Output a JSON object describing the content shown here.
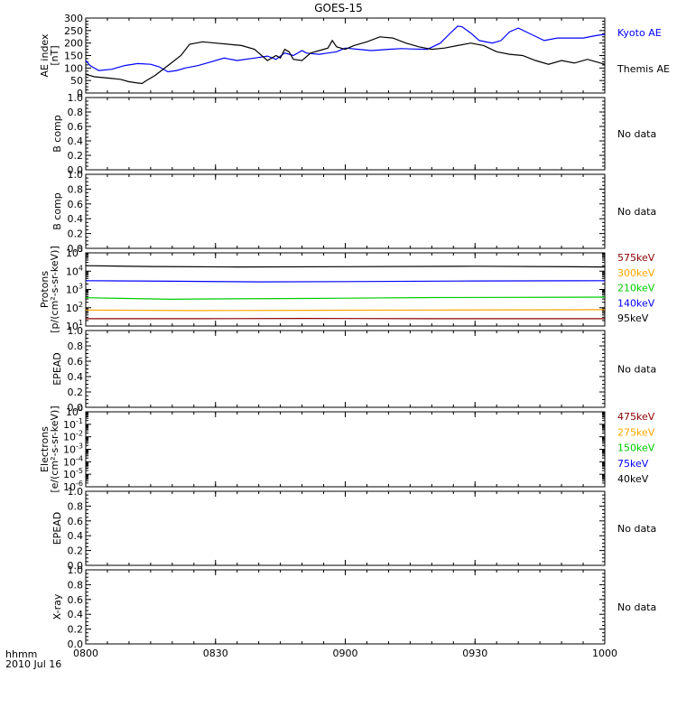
{
  "title": "GOES-15",
  "footer": {
    "time_label": "hhmm",
    "date_label": "2010 Jul 16"
  },
  "time_axis": {
    "xlim_minutes": [
      480,
      600
    ],
    "ticks": [
      {
        "minute": 480,
        "label": "0800"
      },
      {
        "minute": 510,
        "label": "0830"
      },
      {
        "minute": 540,
        "label": "0900"
      },
      {
        "minute": 570,
        "label": "0930"
      },
      {
        "minute": 600,
        "label": "1000"
      }
    ]
  },
  "chart_data": [
    {
      "type": "line",
      "panel": "AE index",
      "ylabel": [
        "AE index",
        "[nT]"
      ],
      "ylim": [
        0,
        300
      ],
      "scale": "linear",
      "yticks": [
        0,
        50,
        100,
        150,
        200,
        250,
        300
      ],
      "ytick_labels": [
        "0",
        "50",
        "100",
        "150",
        "200",
        "250",
        "300"
      ],
      "legend_placement": "right",
      "series": [
        {
          "name": "Kyoto AE",
          "color": "#0000ff",
          "x": [
            480,
            481,
            483,
            486,
            489,
            492,
            495,
            497,
            499,
            501,
            503,
            506,
            509,
            512,
            515,
            519,
            522,
            524,
            526,
            528,
            530,
            531,
            532,
            534,
            536,
            538,
            540,
            543,
            546,
            550,
            553,
            556,
            559,
            562,
            564,
            566,
            567,
            569,
            571,
            574,
            576,
            578,
            580,
            583,
            586,
            589,
            592,
            595,
            598,
            600
          ],
          "y": [
            130,
            110,
            90,
            95,
            110,
            118,
            115,
            105,
            85,
            90,
            100,
            110,
            125,
            140,
            130,
            140,
            148,
            135,
            160,
            150,
            170,
            160,
            158,
            155,
            160,
            165,
            180,
            175,
            170,
            175,
            178,
            176,
            175,
            200,
            235,
            268,
            265,
            240,
            210,
            200,
            210,
            245,
            260,
            235,
            210,
            220,
            220,
            220,
            230,
            235
          ]
        },
        {
          "name": "Themis AE",
          "color": "#000000",
          "x": [
            480,
            482,
            485,
            488,
            490,
            492,
            493,
            494,
            496,
            499,
            502,
            504,
            507,
            510,
            513,
            516,
            519,
            522,
            524,
            525,
            526,
            527,
            528,
            530,
            532,
            534,
            536,
            537,
            538,
            540,
            542,
            545,
            548,
            551,
            554,
            557,
            560,
            563,
            566,
            569,
            572,
            575,
            578,
            581,
            584,
            587,
            590,
            593,
            596,
            598,
            600
          ],
          "y": [
            75,
            65,
            60,
            55,
            45,
            40,
            38,
            50,
            70,
            110,
            150,
            195,
            205,
            200,
            195,
            190,
            175,
            130,
            150,
            140,
            175,
            165,
            135,
            130,
            160,
            170,
            180,
            210,
            185,
            175,
            190,
            205,
            225,
            220,
            200,
            185,
            175,
            180,
            190,
            200,
            190,
            165,
            155,
            150,
            130,
            115,
            130,
            120,
            135,
            125,
            115
          ]
        }
      ]
    },
    {
      "type": "line",
      "panel": "B comp 1",
      "ylabel": [
        "B comp"
      ],
      "ylim": [
        0,
        1
      ],
      "scale": "linear",
      "ytick_labels": [
        "0.0",
        "0.2",
        "0.4",
        "0.6",
        "0.8",
        "1.0"
      ],
      "note": "No data"
    },
    {
      "type": "line",
      "panel": "B comp 2",
      "ylabel": [
        "B comp"
      ],
      "ylim": [
        0,
        1
      ],
      "scale": "linear",
      "ytick_labels": [
        "0.0",
        "0.2",
        "0.4",
        "0.6",
        "0.8",
        "1.0"
      ],
      "note": "No data"
    },
    {
      "type": "line",
      "panel": "Protons",
      "ylabel": [
        "Protons",
        "[p/(cm²-s-sr-keV)]"
      ],
      "ylim": [
        10,
        100000
      ],
      "scale": "log",
      "ytick_exponents": [
        "1",
        "2",
        "3",
        "4",
        "5"
      ],
      "tick_base": "10",
      "legend_placement": "right",
      "series": [
        {
          "name": "575keV",
          "color": "#8b0000",
          "x": [
            480,
            505,
            530,
            560,
            600
          ],
          "y": [
            25,
            25,
            26,
            25,
            25
          ]
        },
        {
          "name": "300keV",
          "color": "#ffa500",
          "x": [
            480,
            505,
            530,
            560,
            600
          ],
          "y": [
            75,
            70,
            72,
            75,
            78
          ]
        },
        {
          "name": "210keV",
          "color": "#00cc00",
          "x": [
            480,
            500,
            505,
            530,
            560,
            600
          ],
          "y": [
            350,
            290,
            300,
            320,
            360,
            380
          ]
        },
        {
          "name": "140keV",
          "color": "#0000ff",
          "x": [
            480,
            500,
            520,
            540,
            570,
            600
          ],
          "y": [
            3000,
            2800,
            2600,
            2700,
            2900,
            3000
          ]
        },
        {
          "name": "95keV",
          "color": "#000000",
          "x": [
            480,
            495,
            515,
            540,
            570,
            600
          ],
          "y": [
            20000,
            18000,
            17000,
            17500,
            18500,
            17000
          ]
        }
      ]
    },
    {
      "type": "line",
      "panel": "EPEAD 1",
      "ylabel": [
        "EPEAD"
      ],
      "ylim": [
        0,
        1
      ],
      "scale": "linear",
      "ytick_labels": [
        "0.0",
        "0.2",
        "0.4",
        "0.6",
        "0.8",
        "1.0"
      ],
      "note": "No data"
    },
    {
      "type": "line",
      "panel": "Electrons",
      "ylabel": [
        "Electrons",
        "[e/(cm²-s-sr-keV)]"
      ],
      "ylim": [
        1e-06,
        1
      ],
      "scale": "log",
      "ytick_exponents": [
        "0",
        "-1",
        "-2",
        "-3",
        "-4",
        "-5",
        "-6"
      ],
      "tick_base": "10",
      "legend_placement": "right",
      "series": [
        {
          "name": "475keV",
          "color": "#8b0000"
        },
        {
          "name": "275keV",
          "color": "#ffa500"
        },
        {
          "name": "150keV",
          "color": "#00cc00"
        },
        {
          "name": "75keV",
          "color": "#0000ff"
        },
        {
          "name": "40keV",
          "color": "#000000"
        }
      ]
    },
    {
      "type": "line",
      "panel": "EPEAD 2",
      "ylabel": [
        "EPEAD"
      ],
      "ylim": [
        0,
        1
      ],
      "scale": "linear",
      "ytick_labels": [
        "0.0",
        "0.2",
        "0.4",
        "0.6",
        "0.8",
        "1.0"
      ],
      "note": "No data"
    },
    {
      "type": "line",
      "panel": "X-ray",
      "ylabel": [
        "X-ray"
      ],
      "ylim": [
        0,
        1
      ],
      "scale": "linear",
      "ytick_labels": [
        "0.0",
        "0.2",
        "0.4",
        "0.6",
        "0.8",
        "1.0"
      ],
      "note": "No data"
    }
  ]
}
